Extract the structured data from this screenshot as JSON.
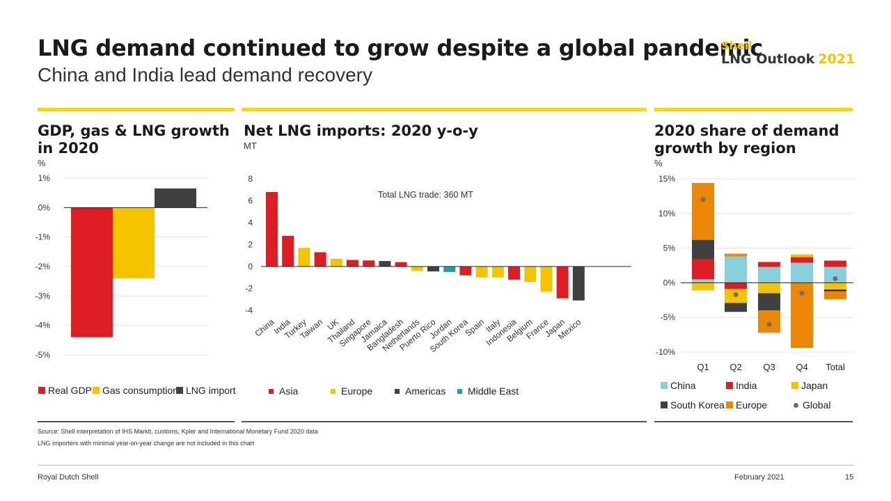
{
  "header": {
    "title": "LNG demand continued to grow despite a global pandemic",
    "subtitle": "China and India lead demand recovery",
    "brand_name": "Shell",
    "brand_line": "LNG Outlook",
    "brand_year": "2021"
  },
  "colors": {
    "yellow": "#ffd500",
    "red": "#dd1d21",
    "gold": "#f5c400",
    "dark": "#404040",
    "teal": "#1a9fb0",
    "light_blue": "#89cfdc",
    "orange": "#eb8705",
    "grey_dot": "#6e6e6e"
  },
  "footer": {
    "source": "Source: Shell interpretation of IHS Markit, customs, Kpler and International Monetary Fund 2020 data",
    "note": "LNG importers with minimal year-on-year change are not included in this chart",
    "company": "Royal Dutch Shell",
    "date": "February 2021",
    "page": "15"
  },
  "chart_data": [
    {
      "type": "bar",
      "title": "GDP, gas & LNG growth in 2020",
      "ylabel": "%",
      "ylim": [
        -5,
        1
      ],
      "yticks": [
        1,
        0,
        -1,
        -2,
        -3,
        -4,
        -5
      ],
      "ytick_labels": [
        "1%",
        "0%",
        "-1%",
        "-2%",
        "-3%",
        "-4%",
        "-5%"
      ],
      "series": [
        {
          "name": "Real GDP",
          "value": -4.4,
          "color": "#dd1d21"
        },
        {
          "name": "Gas consumption",
          "value": -2.4,
          "color": "#f5c400"
        },
        {
          "name": "LNG import",
          "value": 0.65,
          "color": "#404040"
        }
      ],
      "legend_position": "bottom"
    },
    {
      "type": "bar",
      "title": "Net LNG imports: 2020 y-o-y",
      "ylabel": "MT",
      "ylim": [
        -4,
        8
      ],
      "yticks": [
        8,
        6,
        4,
        2,
        0,
        -2,
        -4
      ],
      "annotation": "Total LNG trade: 360 MT",
      "categories": [
        "China",
        "India",
        "Turkey",
        "Taiwan",
        "UK",
        "Thailand",
        "Singapore",
        "Jamaica",
        "Bangladesh",
        "Netherlands",
        "Puerto Rico",
        "Jordan",
        "South Korea",
        "Spain",
        "Italy",
        "Indonesia",
        "Belgium",
        "France",
        "Japan",
        "Mexico"
      ],
      "values": [
        6.8,
        2.8,
        1.7,
        1.3,
        0.7,
        0.6,
        0.55,
        0.5,
        0.4,
        -0.4,
        -0.45,
        -0.5,
        -0.8,
        -1.0,
        -1.0,
        -1.2,
        -1.4,
        -2.3,
        -2.9,
        -3.1
      ],
      "regions": [
        "Asia",
        "Asia",
        "Europe",
        "Asia",
        "Europe",
        "Asia",
        "Asia",
        "Americas",
        "Asia",
        "Europe",
        "Americas",
        "Middle East",
        "Asia",
        "Europe",
        "Europe",
        "Asia",
        "Europe",
        "Europe",
        "Asia",
        "Americas"
      ],
      "region_colors": {
        "Asia": "#dd1d21",
        "Europe": "#f5c400",
        "Americas": "#404040",
        "Middle East": "#1a9fb0"
      },
      "legend": [
        "Asia",
        "Europe",
        "Americas",
        "Middle East"
      ],
      "legend_position": "bottom"
    },
    {
      "type": "bar",
      "title": "2020 share of demand growth by region",
      "ylabel": "%",
      "ylim": [
        -10,
        15
      ],
      "yticks": [
        15,
        10,
        5,
        0,
        -5,
        -10
      ],
      "ytick_labels": [
        "15%",
        "10%",
        "5%",
        "0%",
        "-5%",
        "-10%"
      ],
      "categories": [
        "Q1",
        "Q2",
        "Q3",
        "Q4",
        "Total"
      ],
      "series": [
        {
          "name": "China",
          "color": "#89cfdc",
          "values": [
            0.5,
            3.8,
            2.3,
            2.9,
            2.3
          ]
        },
        {
          "name": "India",
          "color": "#dd1d21",
          "values": [
            2.9,
            -0.9,
            0.7,
            0.8,
            0.9
          ]
        },
        {
          "name": "Japan",
          "color": "#f5c400",
          "values": [
            -1.1,
            -2.0,
            -1.5,
            0.4,
            -1.1
          ]
        },
        {
          "name": "South Korea",
          "color": "#404040",
          "values": [
            2.8,
            -1.3,
            -2.5,
            0.0,
            0.0
          ]
        },
        {
          "name": "Europe",
          "color": "#eb8705",
          "values": [
            8.2,
            0.4,
            -3.2,
            -9.4,
            -1.3
          ]
        }
      ],
      "global": {
        "name": "Global",
        "values": [
          12,
          -1.7,
          -6,
          -1.5,
          0.6
        ]
      },
      "total_marker": -1.1,
      "legend_position": "bottom"
    }
  ]
}
